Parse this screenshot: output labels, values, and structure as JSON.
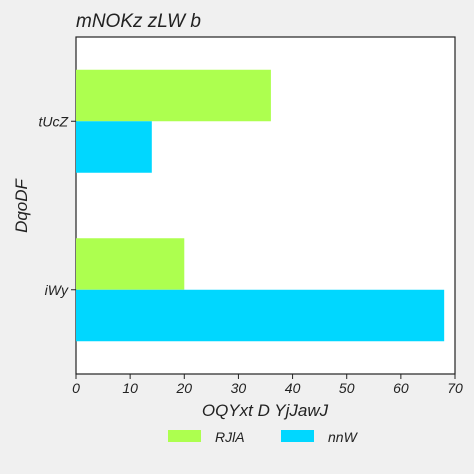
{
  "chart_data": {
    "type": "bar",
    "orientation": "horizontal",
    "title": "mNOKz zLW  b",
    "xlabel": "OQYxt D YjJawJ",
    "ylabel": "DqoDF",
    "categories": [
      "tUcZ",
      "iWy"
    ],
    "series": [
      {
        "name": "RJlA",
        "color": "#adff4f",
        "values": [
          36,
          20
        ]
      },
      {
        "name": "nnW",
        "color": "#00d7ff",
        "values": [
          14,
          68
        ]
      }
    ],
    "xlim": [
      0,
      70
    ],
    "xticks": [
      0,
      10,
      20,
      30,
      40,
      50,
      60,
      70
    ],
    "grid": false,
    "legend_position": "bottom"
  }
}
